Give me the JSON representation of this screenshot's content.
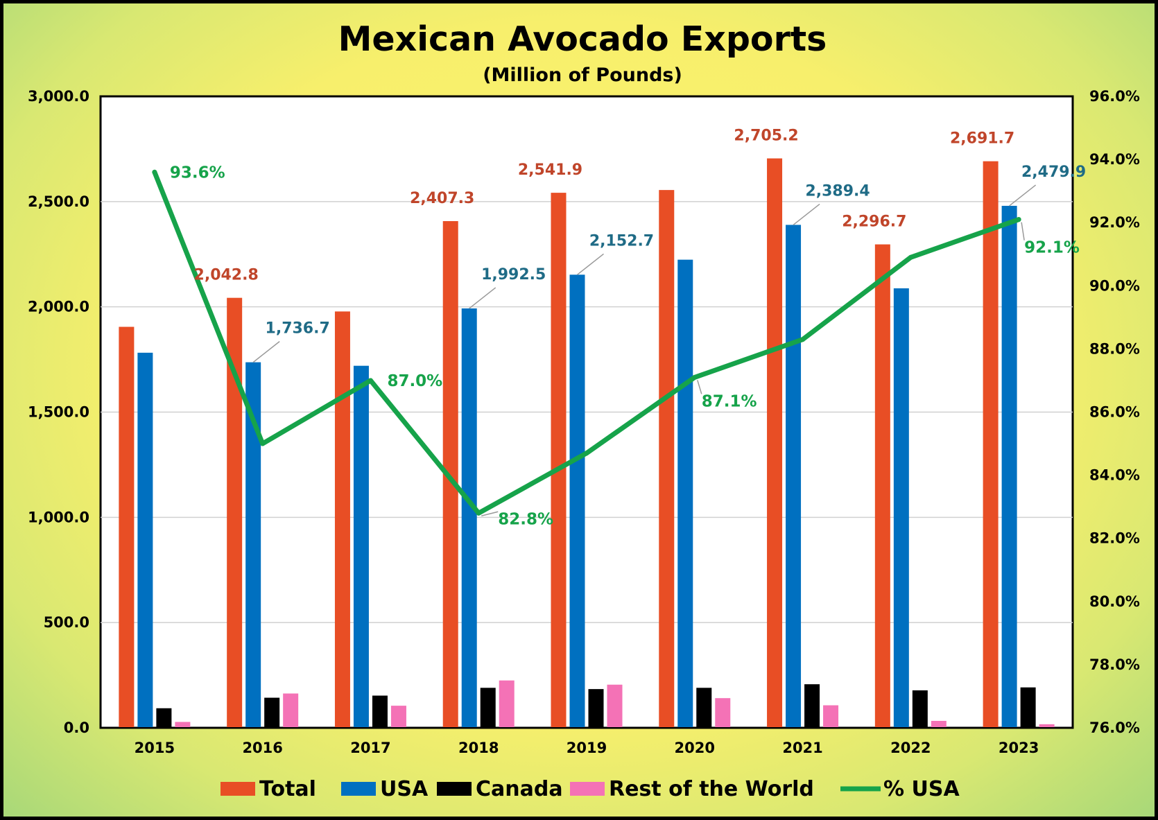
{
  "chart_data": {
    "type": "bar",
    "title": "Mexican Avocado Exports",
    "subtitle": "(Million of Pounds)",
    "categories": [
      "2015",
      "2016",
      "2017",
      "2018",
      "2019",
      "2020",
      "2021",
      "2022",
      "2023"
    ],
    "series": [
      {
        "name": "Total",
        "type": "bar",
        "color": "#e84e25",
        "values": [
          1905,
          2042.8,
          1978,
          2407.3,
          2541.9,
          2555,
          2705.2,
          2296.7,
          2691.7
        ]
      },
      {
        "name": "USA",
        "type": "bar",
        "color": "#0070c0",
        "values": [
          1782,
          1736.7,
          1720,
          1992.5,
          2152.7,
          2224,
          2389.4,
          2088,
          2479.9
        ]
      },
      {
        "name": "Canada",
        "type": "bar",
        "color": "#000000",
        "values": [
          93,
          143,
          153,
          190,
          184,
          190,
          207,
          178,
          192
        ]
      },
      {
        "name": "Rest of the World",
        "type": "bar",
        "color": "#f472b6",
        "values": [
          28,
          163,
          105,
          225,
          205,
          141,
          107,
          33,
          17
        ]
      },
      {
        "name": "% USA",
        "type": "line",
        "axis": "right",
        "color": "#16a34a",
        "values": [
          93.6,
          85.0,
          87.0,
          82.8,
          84.7,
          87.1,
          88.3,
          90.9,
          92.1
        ]
      }
    ],
    "data_labels": [
      {
        "series": "Total",
        "index": 1,
        "text": "2,042.8"
      },
      {
        "series": "Total",
        "index": 3,
        "text": "2,407.3"
      },
      {
        "series": "Total",
        "index": 4,
        "text": "2,541.9"
      },
      {
        "series": "Total",
        "index": 6,
        "text": "2,705.2"
      },
      {
        "series": "Total",
        "index": 7,
        "text": "2,296.7"
      },
      {
        "series": "Total",
        "index": 8,
        "text": "2,691.7"
      },
      {
        "series": "USA",
        "index": 1,
        "text": "1,736.7"
      },
      {
        "series": "USA",
        "index": 3,
        "text": "1,992.5"
      },
      {
        "series": "USA",
        "index": 4,
        "text": "2,152.7"
      },
      {
        "series": "USA",
        "index": 6,
        "text": "2,389.4"
      },
      {
        "series": "USA",
        "index": 8,
        "text": "2,479.9"
      },
      {
        "series": "% USA",
        "index": 0,
        "text": "93.6%"
      },
      {
        "series": "% USA",
        "index": 2,
        "text": "87.0%"
      },
      {
        "series": "% USA",
        "index": 3,
        "text": "82.8%"
      },
      {
        "series": "% USA",
        "index": 5,
        "text": "87.1%"
      },
      {
        "series": "% USA",
        "index": 8,
        "text": "92.1%"
      }
    ],
    "ylim": [
      0,
      3000
    ],
    "y_ticks": [
      "0.0",
      "500.0",
      "1,000.0",
      "1,500.0",
      "2,000.0",
      "2,500.0",
      "3,000.0"
    ],
    "y2lim": [
      76,
      96
    ],
    "y2_ticks": [
      "76.0%",
      "78.0%",
      "80.0%",
      "82.0%",
      "84.0%",
      "86.0%",
      "88.0%",
      "90.0%",
      "92.0%",
      "94.0%",
      "96.0%"
    ],
    "grid": true,
    "legend_position": "bottom"
  }
}
